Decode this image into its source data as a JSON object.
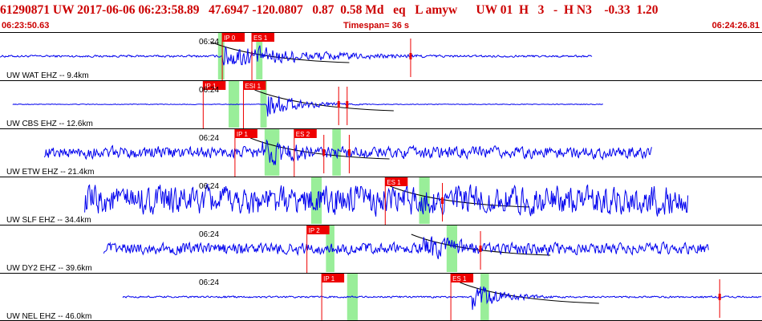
{
  "header": {
    "title": "61290871 UW 2017-06-06 06:23:58.89   47.6947 -120.0807   0.87  0.58 Md   eq   L amyw      UW 01  H   3   -  H N3    -0.33  1.20",
    "start_time": "06:23:50.63",
    "timespan": "Timespan=  36 s",
    "end_time": "06:24:26.81"
  },
  "colors": {
    "trace": "#0000ee",
    "pick_box": "#ee0000",
    "pick_text": "#ffffff",
    "window_shade": "#99ee99",
    "red_marker": "#ee0000",
    "theory_curve": "#000000",
    "panel_border": "#000000",
    "header_text": "#cc0000"
  },
  "chart_data": {
    "type": "seismogram",
    "time_range": [
      "06:23:50.63",
      "06:24:26.81"
    ],
    "timespan_s": 36,
    "traces": [
      {
        "station": "WAT",
        "label": "UW WAT EHZ -- 9.4km",
        "time_label": "06:24",
        "picks": [
          {
            "label": "IP 0",
            "t": 10.5
          },
          {
            "label": "ES 1",
            "t": 11.9
          }
        ],
        "windows": [
          [
            10.3,
            10.6
          ],
          [
            12.1,
            12.4
          ]
        ],
        "red_marks": [
          19.4
        ],
        "data_start": 0.0,
        "data_end": 28.0,
        "noise": 0.06,
        "onset": 10.5,
        "peak": 0.75,
        "decay": 4.5
      },
      {
        "station": "CBS",
        "label": "UW CBS EHZ -- 12.6km",
        "time_label": "06:24",
        "picks": [
          {
            "label": "IP 1",
            "t": 9.6
          },
          {
            "label": "ESI 1",
            "t": 11.5
          }
        ],
        "windows": [
          [
            10.8,
            11.3
          ],
          [
            12.3,
            12.6
          ]
        ],
        "red_marks": [
          16.0,
          16.4
        ],
        "data_start": 0.6,
        "data_end": 28.5,
        "noise": 0.02,
        "onset": 12.6,
        "peak": 0.85,
        "decay": 1.4
      },
      {
        "station": "ETW",
        "label": "UW ETW EHZ -- 21.4km",
        "time_label": "06:24",
        "picks": [
          {
            "label": "IP 1",
            "t": 11.1
          },
          {
            "label": "ES 2",
            "t": 13.9
          }
        ],
        "windows": [
          [
            12.5,
            13.2
          ],
          [
            15.7,
            16.1
          ]
        ],
        "red_marks": [
          15.3,
          16.5
        ],
        "data_start": 2.1,
        "data_end": 30.8,
        "noise": 0.33,
        "onset": 12.4,
        "peak": 0.8,
        "decay": 3.2
      },
      {
        "station": "SLF",
        "label": "UW SLF EHZ -- 34.4km",
        "time_label": "06:24",
        "picks": [
          {
            "label": "ES 1",
            "t": 18.2
          }
        ],
        "windows": [
          [
            14.7,
            15.2
          ],
          [
            19.8,
            20.3
          ]
        ],
        "red_marks": [
          20.9
        ],
        "data_start": 4.0,
        "data_end": 32.5,
        "noise": 0.8,
        "onset": 19.0,
        "peak": 0.9,
        "decay": 3.0
      },
      {
        "station": "DY2",
        "label": "UW DY2 EHZ -- 39.6km",
        "time_label": "06:24",
        "picks": [
          {
            "label": "IP 2",
            "t": 14.5
          }
        ],
        "windows": [
          [
            15.4,
            15.8
          ],
          [
            21.1,
            21.6
          ]
        ],
        "red_marks": [
          22.7
        ],
        "data_start": 4.9,
        "data_end": 33.5,
        "noise": 0.32,
        "onset": 20.0,
        "peak": 0.9,
        "decay": 2.6
      },
      {
        "station": "NEL",
        "label": "UW NEL EHZ -- 46.0km",
        "time_label": "06:24",
        "picks": [
          {
            "label": "IP 1",
            "t": 15.2
          },
          {
            "label": "ES 1",
            "t": 21.3
          }
        ],
        "windows": [
          [
            16.4,
            16.9
          ],
          [
            22.7,
            23.1
          ]
        ],
        "red_marks": [
          34.0
        ],
        "data_start": 5.8,
        "data_end": 36.0,
        "noise": 0.05,
        "onset": 22.3,
        "peak": 0.8,
        "decay": 1.6
      }
    ]
  }
}
